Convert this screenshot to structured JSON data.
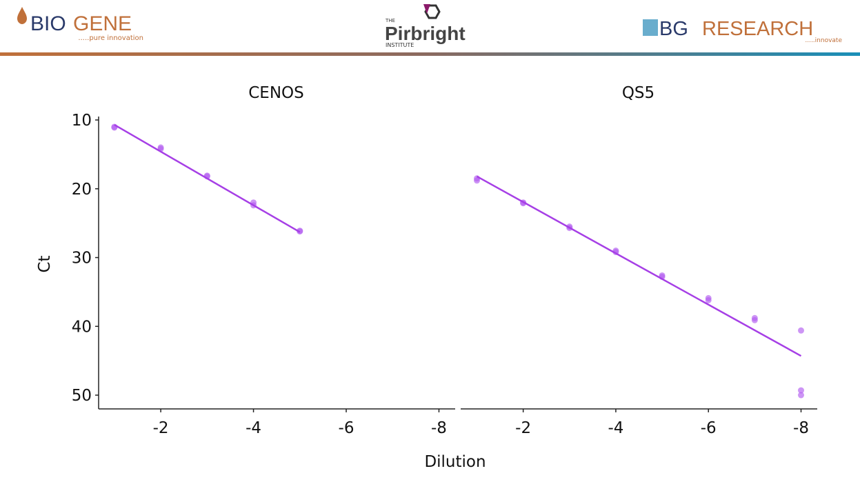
{
  "header": {
    "left_logo": {
      "part1": "BIO",
      "part2": "GENE",
      "tagline": ".....pure innovation"
    },
    "center_logo": {
      "prefix": "THE",
      "name": "Pirbright",
      "suffix": "INSTITUTE"
    },
    "right_logo": {
      "part1": "BG",
      "part2": "RESEARCH",
      "tagline": ".....innovate"
    }
  },
  "axis_labels": {
    "x": "Dilution",
    "y": "Ct"
  },
  "chart_data": [
    {
      "type": "scatter",
      "title": "CENOS",
      "xlim": [
        -0.66,
        -8.35
      ],
      "xticks": [
        -2,
        -4,
        -6,
        -8
      ],
      "ylim": [
        52,
        9.5
      ],
      "yticks": [
        10,
        20,
        30,
        40,
        50
      ],
      "points": {
        "color": "#b25cf0",
        "x": [
          -1,
          -1,
          -2,
          -2,
          -3,
          -3,
          -4,
          -4,
          -5,
          -5
        ],
        "y": [
          11.1,
          11.0,
          14.0,
          14.2,
          18.2,
          18.1,
          22.0,
          22.4,
          26.2,
          26.1
        ]
      },
      "fit": {
        "color": "#a63fe6",
        "x": [
          -1,
          -5
        ],
        "y": [
          10.7,
          26.3
        ]
      }
    },
    {
      "type": "scatter",
      "title": "QS5",
      "xlim": [
        -0.65,
        -8.35
      ],
      "xticks": [
        -2,
        -4,
        -6,
        -8
      ],
      "ylim": [
        52,
        9.5
      ],
      "points": {
        "color": "#b25cf0",
        "x": [
          -1,
          -1,
          -2,
          -2,
          -3,
          -3,
          -4,
          -4,
          -5,
          -5,
          -6,
          -6,
          -7,
          -7,
          -8,
          -8,
          -8
        ],
        "y": [
          18.8,
          18.5,
          22.0,
          22.1,
          25.5,
          25.7,
          29.0,
          29.2,
          32.6,
          32.8,
          35.9,
          36.2,
          38.8,
          39.1,
          40.6,
          49.3,
          50.0
        ]
      },
      "fit": {
        "color": "#a63fe6",
        "x": [
          -1,
          -8
        ],
        "y": [
          18.2,
          44.3
        ]
      }
    }
  ]
}
